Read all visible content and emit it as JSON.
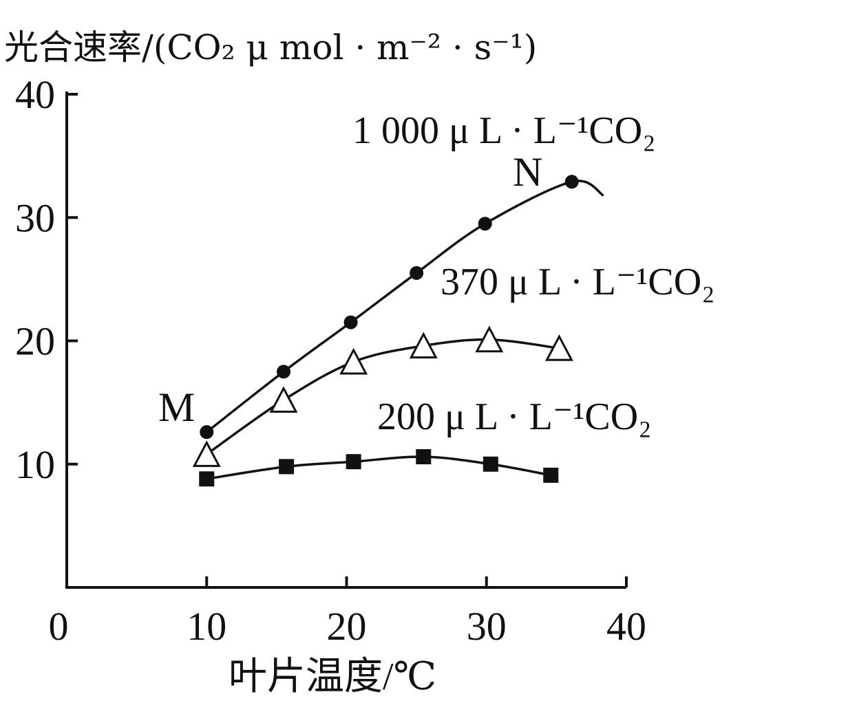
{
  "chart_data": {
    "type": "line",
    "ylabel": "光合速率/(CO₂ μ mol · m⁻² · s⁻¹)",
    "xlabel": "叶片温度/℃",
    "xlim": [
      0,
      40
    ],
    "ylim": [
      0,
      40
    ],
    "x_ticks": [
      "0",
      "10",
      "20",
      "30",
      "40"
    ],
    "y_ticks": [
      "10",
      "20",
      "30",
      "40"
    ],
    "grid": false,
    "series": [
      {
        "name": "1 000 μ L · L⁻¹CO₂",
        "marker": "circle",
        "x": [
          10,
          15.5,
          20.3,
          25,
          29.9,
          36.1
        ],
        "y": [
          12.6,
          17.5,
          21.5,
          25.5,
          29.5,
          32.9
        ]
      },
      {
        "name": "370 μ L · L⁻¹CO₂",
        "marker": "triangle",
        "x": [
          10,
          15.5,
          20.5,
          25.5,
          30.2,
          35.2
        ],
        "y": [
          10.8,
          15.2,
          18.3,
          19.6,
          20.1,
          19.4
        ]
      },
      {
        "name": "200 μ L · L⁻¹CO₂",
        "marker": "square",
        "x": [
          10,
          15.7,
          20.5,
          25.5,
          30.3,
          34.6
        ],
        "y": [
          8.8,
          9.8,
          10.2,
          10.6,
          10.0,
          9.1
        ]
      }
    ],
    "annotations": [
      {
        "text": "M",
        "x": 10,
        "y": 12.6
      },
      {
        "text": "N",
        "x": 36.1,
        "y": 32.9
      }
    ],
    "colors": {
      "line": "#111111",
      "background": "#ffffff"
    }
  }
}
